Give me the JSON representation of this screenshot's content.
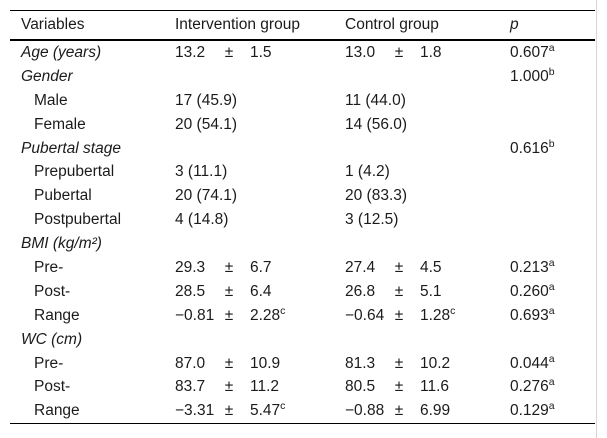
{
  "table": {
    "pm": "±",
    "header": {
      "variables": "Variables",
      "intervention": "Intervention group",
      "control": "Control group",
      "p": "p"
    },
    "rows": [
      {
        "label": "Age (years)",
        "iv": {
          "v": "13.2",
          "sd": "1.5"
        },
        "cv": {
          "v": "13.0",
          "sd": "1.8"
        },
        "p": "0.607",
        "ps": "a"
      },
      {
        "label": "Gender",
        "p": "1.000",
        "ps": "b"
      },
      {
        "label": "Male",
        "ivt": "17 (45.9)",
        "cvt": "11 (44.0)"
      },
      {
        "label": "Female",
        "ivt": "20 (54.1)",
        "cvt": "14 (56.0)"
      },
      {
        "label": "Pubertal stage",
        "p": "0.616",
        "ps": "b"
      },
      {
        "label": "Prepubertal",
        "ivt": "3 (11.1)",
        "cvt": "1 (4.2)"
      },
      {
        "label": "Pubertal",
        "ivt": "20 (74.1)",
        "cvt": "20 (83.3)"
      },
      {
        "label": "Postpubertal",
        "ivt": "4 (14.8)",
        "cvt": "3 (12.5)"
      },
      {
        "label": "BMI (kg/m²)"
      },
      {
        "label": "Pre-",
        "iv": {
          "v": "29.3",
          "sd": "6.7"
        },
        "cv": {
          "v": "27.4",
          "sd": "4.5"
        },
        "p": "0.213",
        "ps": "a"
      },
      {
        "label": "Post-",
        "iv": {
          "v": "28.5",
          "sd": "6.4"
        },
        "cv": {
          "v": "26.8",
          "sd": "5.1"
        },
        "p": "0.260",
        "ps": "a"
      },
      {
        "label": "Range",
        "iv": {
          "v": "−0.81",
          "sd": "2.28",
          "sds": "c"
        },
        "cv": {
          "v": "−0.64",
          "sd": "1.28",
          "sds": "c"
        },
        "p": "0.693",
        "ps": "a"
      },
      {
        "label": "WC (cm)"
      },
      {
        "label": "Pre-",
        "iv": {
          "v": "87.0",
          "sd": "10.9"
        },
        "cv": {
          "v": "81.3",
          "sd": "10.2"
        },
        "p": "0.044",
        "ps": "a"
      },
      {
        "label": "Post-",
        "iv": {
          "v": "83.7",
          "sd": "11.2"
        },
        "cv": {
          "v": "80.5",
          "sd": "11.6"
        },
        "p": "0.276",
        "ps": "a"
      },
      {
        "label": "Range",
        "iv": {
          "v": "−3.31",
          "sd": "5.47",
          "sds": "c"
        },
        "cv": {
          "v": "−0.88",
          "sd": "6.99"
        },
        "p": "0.129",
        "ps": "a"
      }
    ]
  }
}
